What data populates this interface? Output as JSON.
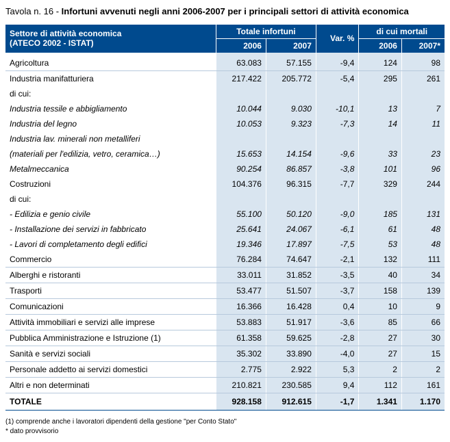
{
  "caption": {
    "prefix": "Tavola n. 16 - ",
    "title": "Infortuni avvenuti negli anni 2006-2007 per i principali settori di attività economica"
  },
  "header": {
    "sector_line1": "Settore di attività economica",
    "sector_line2": "(ATECO 2002 - ISTAT)",
    "group_total": "Totale infortuni",
    "group_mortal": "di cui mortali",
    "y2006": "2006",
    "y2007": "2007",
    "varpct": "Var. %",
    "y2007star": "2007*"
  },
  "rows": [
    {
      "sector": "Agricoltura",
      "t2006": "63.083",
      "t2007": "57.155",
      "var": "-9,4",
      "m2006": "124",
      "m2007": "98",
      "cls": "first"
    },
    {
      "sector": "Industria manifatturiera",
      "t2006": "217.422",
      "t2007": "205.772",
      "var": "-5,4",
      "m2006": "295",
      "m2007": "261",
      "cls": "noborder"
    },
    {
      "sector": "di cui:",
      "t2006": "",
      "t2007": "",
      "var": "",
      "m2006": "",
      "m2007": "",
      "cls": "noborder"
    },
    {
      "sector": "Industria tessile e abbigliamento",
      "t2006": "10.044",
      "t2007": "9.030",
      "var": "-10,1",
      "m2006": "13",
      "m2007": "7",
      "cls": "sub noborder"
    },
    {
      "sector": "Industria del legno",
      "t2006": "10.053",
      "t2007": "9.323",
      "var": "-7,3",
      "m2006": "14",
      "m2007": "11",
      "cls": "sub noborder"
    },
    {
      "sector": "Industria lav. minerali non metalliferi",
      "t2006": "",
      "t2007": "",
      "var": "",
      "m2006": "",
      "m2007": "",
      "cls": "sub noborder"
    },
    {
      "sector": "(materiali per l'edilizia, vetro, ceramica…)",
      "t2006": "15.653",
      "t2007": "14.154",
      "var": "-9,6",
      "m2006": "33",
      "m2007": "23",
      "cls": "sub noborder"
    },
    {
      "sector": "Metalmeccanica",
      "t2006": "90.254",
      "t2007": "86.857",
      "var": "-3,8",
      "m2006": "101",
      "m2007": "96",
      "cls": "sub"
    },
    {
      "sector": "Costruzioni",
      "t2006": "104.376",
      "t2007": "96.315",
      "var": "-7,7",
      "m2006": "329",
      "m2007": "244",
      "cls": "noborder"
    },
    {
      "sector": "di cui:",
      "t2006": "",
      "t2007": "",
      "var": "",
      "m2006": "",
      "m2007": "",
      "cls": "noborder"
    },
    {
      "sector": "- Edilizia e genio civile",
      "t2006": "55.100",
      "t2007": "50.120",
      "var": "-9,0",
      "m2006": "185",
      "m2007": "131",
      "cls": "sub noborder"
    },
    {
      "sector": "- Installazione dei servizi in fabbricato",
      "t2006": "25.641",
      "t2007": "24.067",
      "var": "-6,1",
      "m2006": "61",
      "m2007": "48",
      "cls": "sub noborder"
    },
    {
      "sector": "- Lavori di completamento degli edifici",
      "t2006": "19.346",
      "t2007": "17.897",
      "var": "-7,5",
      "m2006": "53",
      "m2007": "48",
      "cls": "sub"
    },
    {
      "sector": "Commercio",
      "t2006": "76.284",
      "t2007": "74.647",
      "var": "-2,1",
      "m2006": "132",
      "m2007": "111",
      "cls": ""
    },
    {
      "sector": "Alberghi e ristoranti",
      "t2006": "33.011",
      "t2007": "31.852",
      "var": "-3,5",
      "m2006": "40",
      "m2007": "34",
      "cls": ""
    },
    {
      "sector": "Trasporti",
      "t2006": "53.477",
      "t2007": "51.507",
      "var": "-3,7",
      "m2006": "158",
      "m2007": "139",
      "cls": ""
    },
    {
      "sector": "Comunicazioni",
      "t2006": "16.366",
      "t2007": "16.428",
      "var": "0,4",
      "m2006": "10",
      "m2007": "9",
      "cls": ""
    },
    {
      "sector": "Attività immobiliari e servizi alle imprese",
      "t2006": "53.883",
      "t2007": "51.917",
      "var": "-3,6",
      "m2006": "85",
      "m2007": "66",
      "cls": ""
    },
    {
      "sector": "Pubblica Amministrazione e Istruzione (1)",
      "t2006": "61.358",
      "t2007": "59.625",
      "var": "-2,8",
      "m2006": "27",
      "m2007": "30",
      "cls": ""
    },
    {
      "sector": "Sanità e servizi sociali",
      "t2006": "35.302",
      "t2007": "33.890",
      "var": "-4,0",
      "m2006": "27",
      "m2007": "15",
      "cls": ""
    },
    {
      "sector": "Personale addetto ai servizi domestici",
      "t2006": "2.775",
      "t2007": "2.922",
      "var": "5,3",
      "m2006": "2",
      "m2007": "2",
      "cls": ""
    },
    {
      "sector": "Altri e non determinati",
      "t2006": "210.821",
      "t2007": "230.585",
      "var": "9,4",
      "m2006": "112",
      "m2007": "161",
      "cls": ""
    },
    {
      "sector": "TOTALE",
      "t2006": "928.158",
      "t2007": "912.615",
      "var": "-1,7",
      "m2006": "1.341",
      "m2007": "1.170",
      "cls": "total"
    }
  ],
  "footnotes": {
    "note1": "(1) comprende anche i lavoratori dipendenti della gestione \"per Conto Stato\"",
    "note2": "*   dato provvisorio"
  },
  "colors": {
    "header_bg": "#004a8e",
    "header_fg": "#ffffff",
    "cell_bg": "#d9e5f0",
    "rule": "#b7c9dc"
  }
}
